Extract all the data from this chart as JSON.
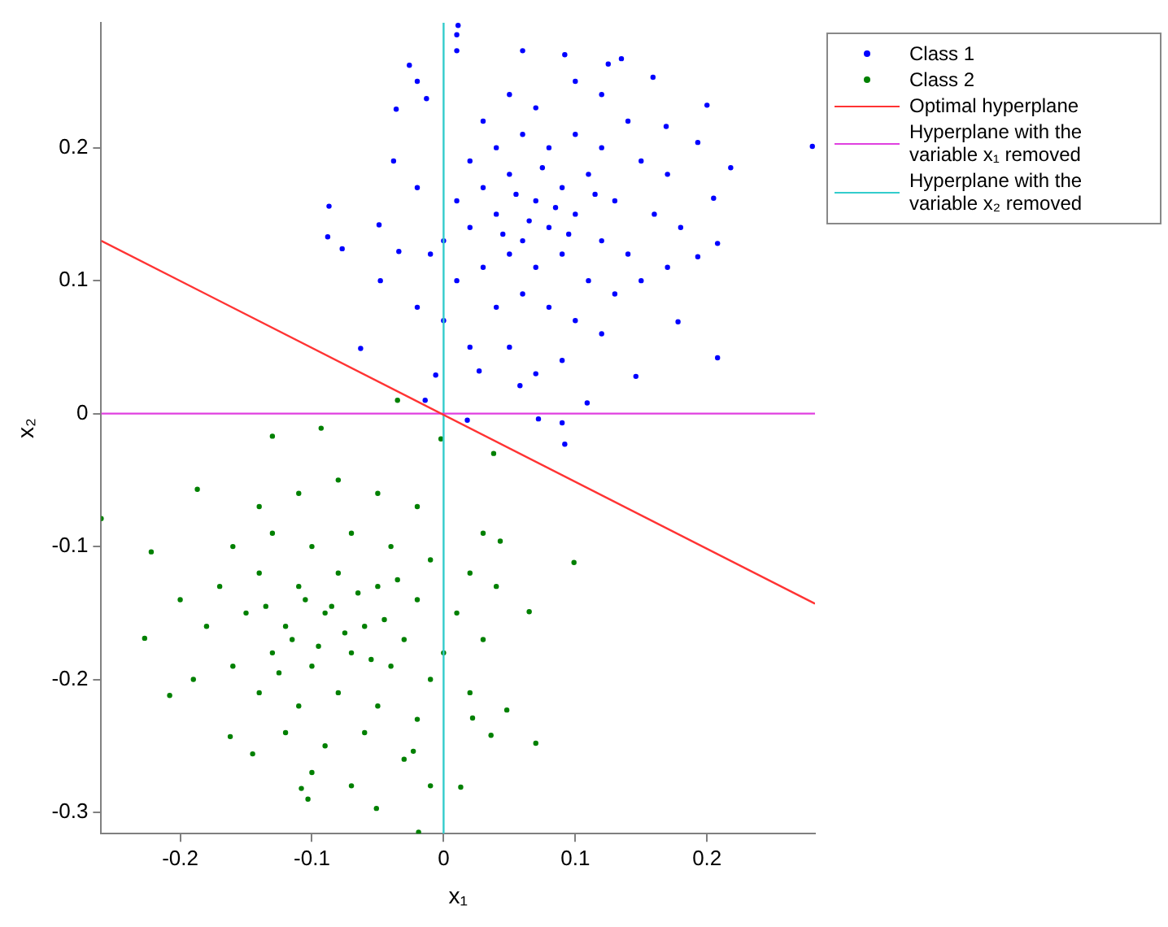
{
  "chart_data": {
    "type": "scatter",
    "xlabel": "x₁",
    "ylabel": "x₂",
    "xlim": [
      -0.26,
      0.282
    ],
    "ylim": [
      -0.316,
      0.294
    ],
    "xticks": [
      -0.2,
      -0.1,
      0,
      0.1,
      0.2
    ],
    "yticks": [
      -0.3,
      -0.2,
      -0.1,
      0,
      0.1,
      0.2
    ],
    "grid": false,
    "legend": "top right",
    "marker": "circle",
    "series": [
      {
        "name": "Class 1",
        "color": "#0000ff",
        "x": [
          0.011,
          0.01,
          0.01,
          0.06,
          -0.026,
          0.092,
          0.135,
          0.125,
          -0.02,
          0.159,
          -0.036,
          0.2,
          0.28,
          0.218,
          -0.087,
          -0.088,
          -0.077,
          -0.049,
          -0.048,
          -0.063,
          0.208,
          0.092,
          0.09,
          0.072,
          0.018,
          -0.014,
          -0.006,
          0.146,
          0.178,
          0.193,
          0.208,
          0.205,
          0.193,
          0.169,
          -0.013,
          -0.038,
          -0.034,
          0.027,
          0.058,
          0.109,
          0.03,
          0.05,
          0.07,
          0.1,
          0.12,
          0.14,
          0.02,
          0.04,
          0.06,
          0.08,
          0.1,
          0.12,
          0.15,
          0.17,
          0.01,
          0.03,
          0.05,
          0.07,
          0.09,
          0.11,
          0.13,
          0.16,
          0.18,
          0.0,
          0.02,
          0.04,
          0.06,
          0.08,
          0.1,
          0.12,
          0.14,
          0.17,
          0.01,
          0.03,
          0.05,
          0.07,
          0.09,
          0.11,
          0.13,
          0.15,
          0.0,
          0.04,
          0.06,
          0.08,
          0.1,
          0.12,
          0.02,
          0.05,
          0.09,
          0.07,
          -0.02,
          -0.01,
          -0.02,
          0.085,
          0.065,
          0.095,
          0.075,
          0.045,
          0.115,
          0.055
        ],
        "values": [
          0.292,
          0.285,
          0.273,
          0.273,
          0.262,
          0.27,
          0.267,
          0.263,
          0.25,
          0.253,
          0.229,
          0.232,
          0.201,
          0.185,
          0.156,
          0.133,
          0.124,
          0.142,
          0.1,
          0.049,
          0.042,
          -0.023,
          -0.007,
          -0.004,
          -0.005,
          0.01,
          0.029,
          0.028,
          0.069,
          0.118,
          0.128,
          0.162,
          0.204,
          0.216,
          0.237,
          0.19,
          0.122,
          0.032,
          0.021,
          0.008,
          0.22,
          0.24,
          0.23,
          0.25,
          0.24,
          0.22,
          0.19,
          0.2,
          0.21,
          0.2,
          0.21,
          0.2,
          0.19,
          0.18,
          0.16,
          0.17,
          0.18,
          0.16,
          0.17,
          0.18,
          0.16,
          0.15,
          0.14,
          0.13,
          0.14,
          0.15,
          0.13,
          0.14,
          0.15,
          0.13,
          0.12,
          0.11,
          0.1,
          0.11,
          0.12,
          0.11,
          0.12,
          0.1,
          0.09,
          0.1,
          0.07,
          0.08,
          0.09,
          0.08,
          0.07,
          0.06,
          0.05,
          0.05,
          0.04,
          0.03,
          0.17,
          0.12,
          0.08,
          0.155,
          0.145,
          0.135,
          0.185,
          0.135,
          0.165,
          0.165
        ]
      },
      {
        "name": "Class 2",
        "color": "#008000",
        "x": [
          -0.26,
          -0.035,
          -0.093,
          -0.13,
          0.038,
          -0.002,
          0.099,
          -0.222,
          -0.227,
          -0.208,
          -0.187,
          0.07,
          0.048,
          0.043,
          0.065,
          -0.051,
          -0.019,
          -0.103,
          -0.108,
          0.013,
          -0.01,
          -0.162,
          -0.145,
          0.036,
          0.022,
          -0.023,
          -0.14,
          -0.11,
          -0.08,
          -0.05,
          -0.02,
          -0.16,
          -0.13,
          -0.1,
          -0.07,
          -0.04,
          -0.01,
          0.02,
          -0.17,
          -0.14,
          -0.11,
          -0.08,
          -0.05,
          -0.02,
          0.01,
          -0.18,
          -0.15,
          -0.12,
          -0.09,
          -0.06,
          -0.03,
          0.0,
          0.03,
          -0.16,
          -0.13,
          -0.1,
          -0.07,
          -0.04,
          -0.01,
          0.02,
          -0.14,
          -0.11,
          -0.08,
          -0.05,
          -0.02,
          -0.12,
          -0.09,
          -0.06,
          -0.03,
          -0.1,
          -0.07,
          -0.085,
          -0.075,
          -0.095,
          -0.065,
          -0.105,
          -0.055,
          -0.115,
          -0.045,
          -0.125,
          -0.035,
          -0.135,
          -0.19,
          -0.2,
          0.03,
          0.04
        ],
        "values": [
          -0.079,
          0.01,
          -0.011,
          -0.017,
          -0.03,
          -0.019,
          -0.112,
          -0.104,
          -0.169,
          -0.212,
          -0.057,
          -0.248,
          -0.223,
          -0.096,
          -0.149,
          -0.297,
          -0.315,
          -0.29,
          -0.282,
          -0.281,
          -0.28,
          -0.243,
          -0.256,
          -0.242,
          -0.229,
          -0.254,
          -0.07,
          -0.06,
          -0.05,
          -0.06,
          -0.07,
          -0.1,
          -0.09,
          -0.1,
          -0.09,
          -0.1,
          -0.11,
          -0.12,
          -0.13,
          -0.12,
          -0.13,
          -0.12,
          -0.13,
          -0.14,
          -0.15,
          -0.16,
          -0.15,
          -0.16,
          -0.15,
          -0.16,
          -0.17,
          -0.18,
          -0.17,
          -0.19,
          -0.18,
          -0.19,
          -0.18,
          -0.19,
          -0.2,
          -0.21,
          -0.21,
          -0.22,
          -0.21,
          -0.22,
          -0.23,
          -0.24,
          -0.25,
          -0.24,
          -0.26,
          -0.27,
          -0.28,
          -0.145,
          -0.165,
          -0.175,
          -0.135,
          -0.14,
          -0.185,
          -0.17,
          -0.155,
          -0.195,
          -0.125,
          -0.145,
          -0.2,
          -0.14,
          -0.09,
          -0.13
        ]
      },
      {
        "name": "Optimal hyperplane",
        "type": "line",
        "marker": "none",
        "color": "#ff3333",
        "x": [
          -0.26,
          0.282
        ],
        "values": [
          0.13,
          -0.143
        ]
      },
      {
        "name": "Hyperplane with the variable x₁ removed",
        "type": "line",
        "marker": "none",
        "color": "#e040e0",
        "x": [
          -0.26,
          0.282
        ],
        "values": [
          0,
          0
        ]
      },
      {
        "name": "Hyperplane with the variable x₂ removed",
        "type": "line",
        "marker": "none",
        "color": "#33cccc",
        "x": [
          0,
          0
        ],
        "values": [
          -0.316,
          0.294
        ]
      }
    ]
  }
}
